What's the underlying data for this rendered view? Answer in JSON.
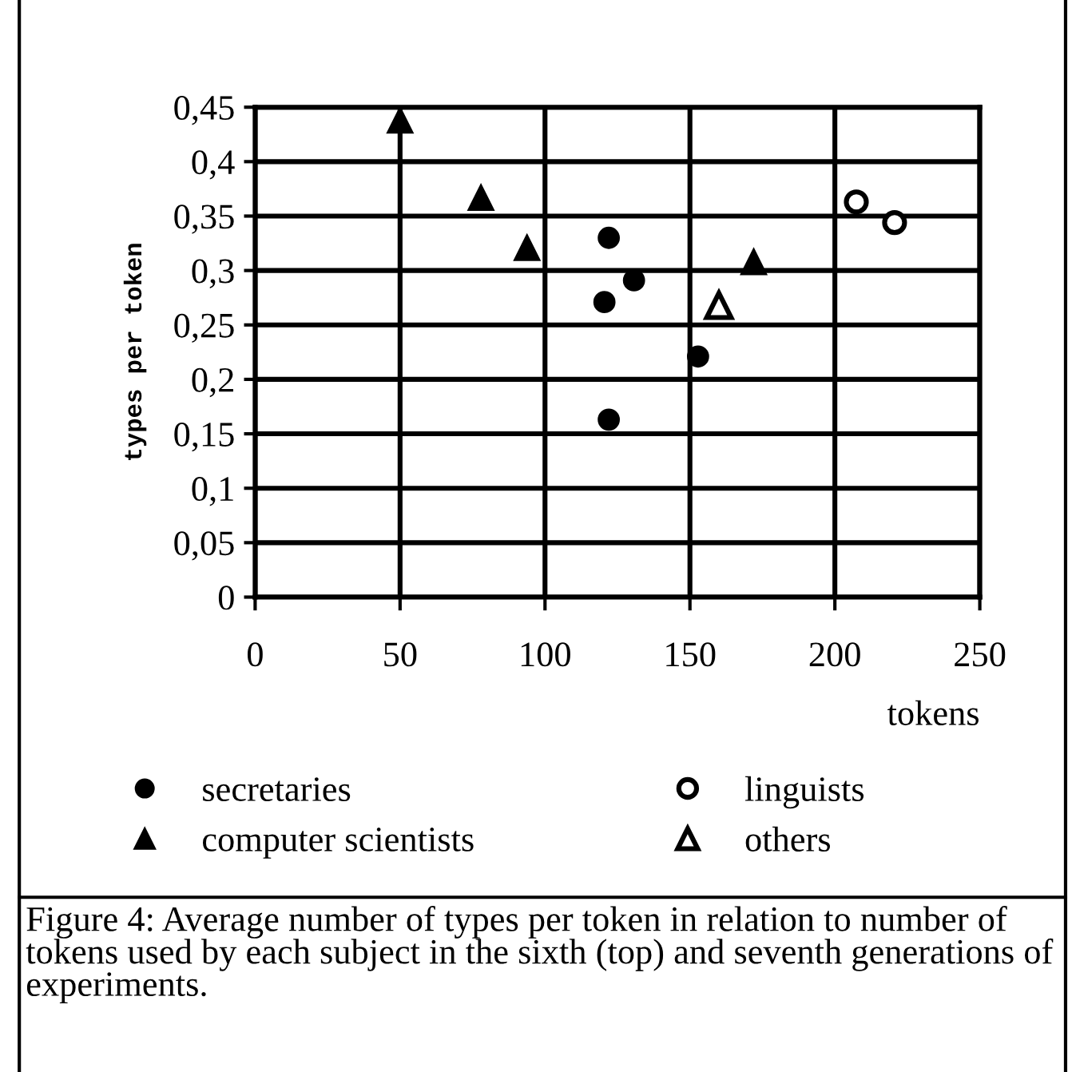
{
  "chart_data": {
    "type": "scatter",
    "xlabel": "tokens",
    "ylabel": "types per token",
    "series": [
      {
        "name": "secretaries",
        "color": "#000000",
        "marker": "circle",
        "x": [
          122,
          130.7,
          120.5,
          152.8,
          122
        ],
        "values": [
          0.33,
          0.291,
          0.271,
          0.221,
          0.163
        ]
      },
      {
        "name": "computer scientists",
        "color": "#000000",
        "marker": "triangle",
        "x": [
          50,
          77.9,
          93.8,
          172
        ],
        "values": [
          0.438,
          0.367,
          0.321,
          0.308
        ]
      },
      {
        "name": "linguists",
        "color": "#000000",
        "marker": "circle-open",
        "x": [
          207.4,
          220.6
        ],
        "values": [
          0.363,
          0.344
        ]
      },
      {
        "name": "others",
        "color": "#000000",
        "marker": "triangle-open",
        "x": [
          160
        ],
        "values": [
          0.268
        ]
      }
    ],
    "xlim": [
      0,
      250
    ],
    "xticks": [
      0,
      50,
      100,
      150,
      200,
      250
    ],
    "ylim": [
      0,
      0.45
    ],
    "yticks": [
      0,
      {
        "value": 0.05,
        "label": "0,05"
      },
      {
        "value": 0.1,
        "label": "0,1"
      },
      {
        "value": 0.15,
        "label": "0,15"
      },
      {
        "value": 0.2,
        "label": "0,2"
      },
      {
        "value": 0.25,
        "label": "0,25"
      },
      {
        "value": 0.3,
        "label": "0,3"
      },
      {
        "value": 0.35,
        "label": "0,35"
      },
      {
        "value": 0.4,
        "label": "0,4"
      },
      {
        "value": 0.45,
        "label": "0,45"
      }
    ],
    "grid": true,
    "legend": "bottom",
    "annotations": [
      "Figure 4: Average number of types per token in relation to number of tokens used by each subject in the sixth (top) and seventh generations of experiments."
    ]
  }
}
